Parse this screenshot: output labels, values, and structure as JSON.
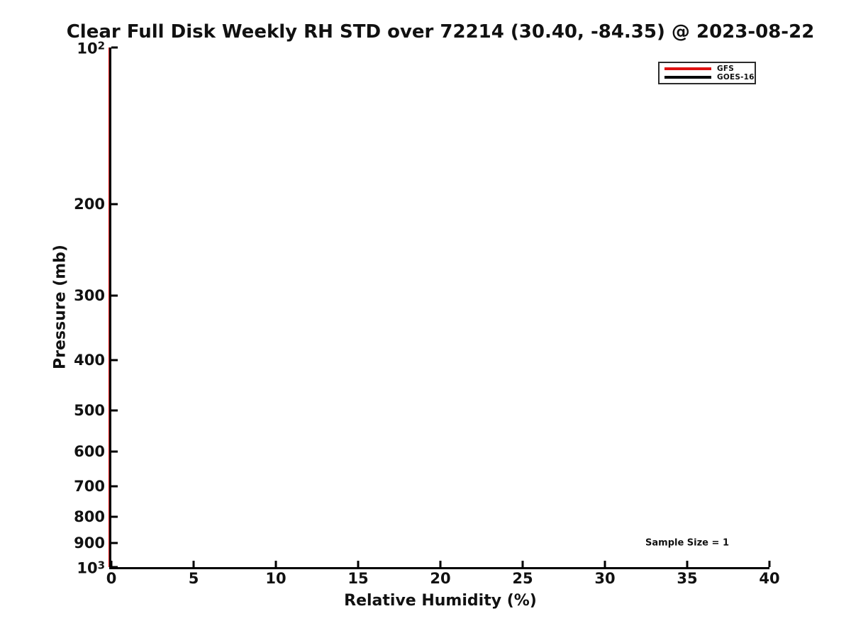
{
  "figure": {
    "background": "#ffffff",
    "text_color": "#111111",
    "spine_color": "#000000"
  },
  "chart_data": {
    "type": "line",
    "title": "Clear Full Disk Weekly RH STD over 72214 (30.40, -84.35) @ 2023-08-22",
    "xlabel": "Relative Humidity (%)",
    "ylabel": "Pressure (mb)",
    "xlim": [
      0,
      40
    ],
    "xticks": [
      0,
      5,
      10,
      15,
      20,
      25,
      30,
      35,
      40
    ],
    "yscale": "log",
    "ylim": [
      100,
      1000
    ],
    "y_orientation": "pressure-decreasing-upward",
    "yticks": [
      {
        "value": 100,
        "label": "10^2"
      },
      {
        "value": 200,
        "label": "200"
      },
      {
        "value": 300,
        "label": "300"
      },
      {
        "value": 400,
        "label": "400"
      },
      {
        "value": 500,
        "label": "500"
      },
      {
        "value": 600,
        "label": "600"
      },
      {
        "value": 700,
        "label": "700"
      },
      {
        "value": 800,
        "label": "800"
      },
      {
        "value": 900,
        "label": "900"
      },
      {
        "value": 1000,
        "label": "10^3"
      }
    ],
    "grid": false,
    "tick_direction": "in",
    "legend": {
      "position": "upper right",
      "entries": [
        {
          "label": "GFS",
          "color": "#dd1111"
        },
        {
          "label": "GOES-16",
          "color": "#000000"
        }
      ]
    },
    "annotation": {
      "text": "Sample Size = 1",
      "x": 35,
      "y": 900
    },
    "series": [
      {
        "name": "GFS",
        "color": "#dd1111",
        "x": [
          0,
          0
        ],
        "y": [
          100,
          1000
        ],
        "note": "RH STD = 0 at all pressure levels; line coincides with the y-axis spine"
      },
      {
        "name": "GOES-16",
        "color": "#000000",
        "x": [
          0,
          0
        ],
        "y": [
          100,
          1000
        ],
        "note": "RH STD = 0 at all pressure levels; line coincides with the y-axis spine"
      }
    ]
  }
}
